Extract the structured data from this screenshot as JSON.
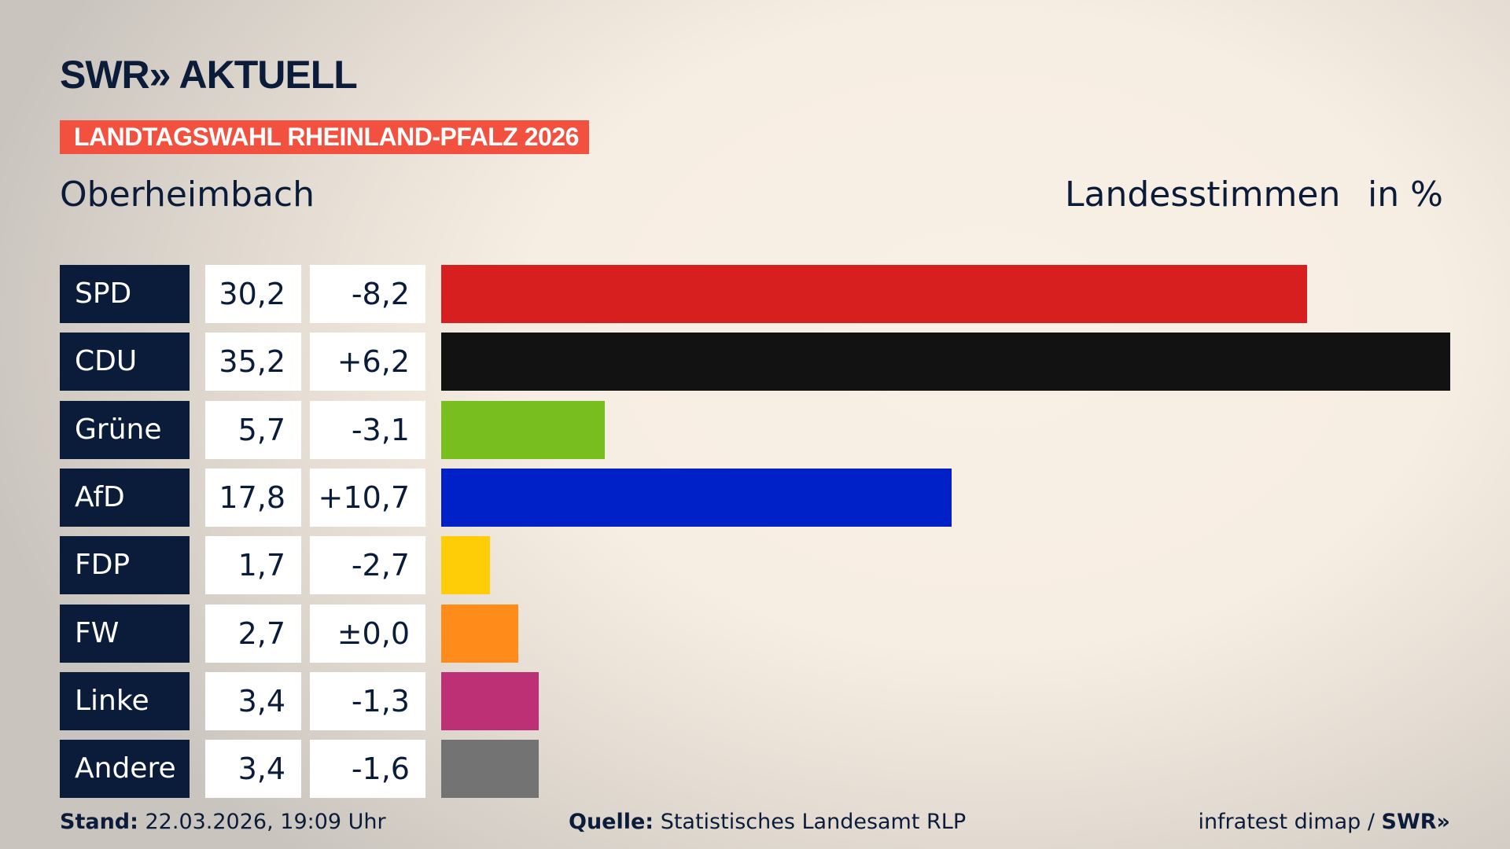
{
  "logo": "SWR» AKTUELL",
  "banner": "LANDTAGSWAHL RHEINLAND-PFALZ 2026",
  "region": "Oberheimbach",
  "vote_type": "Landesstimmen",
  "unit": "in %",
  "chart_data": {
    "type": "bar",
    "orientation": "horizontal",
    "categories": [
      "SPD",
      "CDU",
      "Grüne",
      "AfD",
      "FDP",
      "FW",
      "Linke",
      "Andere"
    ],
    "values": [
      30.2,
      35.2,
      5.7,
      17.8,
      1.7,
      2.7,
      3.4,
      3.4
    ],
    "value_labels": [
      "30,2",
      "35,2",
      "5,7",
      "17,8",
      "1,7",
      "2,7",
      "3,4",
      "3,4"
    ],
    "change_labels": [
      "-8,2",
      "+6,2",
      "-3,1",
      "+10,7",
      "-2,7",
      "±0,0",
      "-1,3",
      "-1,6"
    ],
    "colors": [
      "#d81f1f",
      "#121212",
      "#78be1e",
      "#0021c8",
      "#ffcd08",
      "#ff8c1a",
      "#be3075",
      "#737373"
    ],
    "ylabel": "in %"
  },
  "footer": {
    "stand_label": "Stand:",
    "stand_value": " 22.03.2026, 19:09 Uhr",
    "source_label": "Quelle:",
    "source_value": " Statistisches Landesamt RLP",
    "credit": "infratest dimap / ",
    "credit_logo": "SWR»"
  }
}
